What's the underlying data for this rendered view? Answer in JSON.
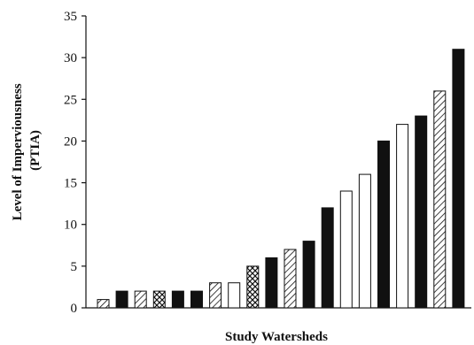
{
  "chart_data": {
    "type": "bar",
    "title": "",
    "xlabel": "Study Watersheds",
    "ylabel_line1": "Level of Imperviousness",
    "ylabel_line2": "(PTIA)",
    "ylim": [
      0,
      35
    ],
    "yticks": [
      "0",
      "5",
      "10",
      "15",
      "20",
      "25",
      "30",
      "35"
    ],
    "grid": false,
    "legend": "none",
    "values": [
      1,
      2,
      2,
      2,
      2,
      2,
      3,
      3,
      5,
      6,
      7,
      8,
      12,
      14,
      16,
      20,
      22,
      23,
      26,
      31
    ],
    "patterns": [
      "hatch",
      "solid",
      "hatch",
      "cross",
      "solid",
      "solid",
      "hatch",
      "open",
      "cross",
      "solid",
      "hatch",
      "solid",
      "solid",
      "open",
      "open",
      "solid",
      "open",
      "solid",
      "hatch",
      "solid"
    ],
    "colors": {
      "solid": "#111111",
      "open": "#ffffff",
      "stroke": "#111111"
    }
  }
}
